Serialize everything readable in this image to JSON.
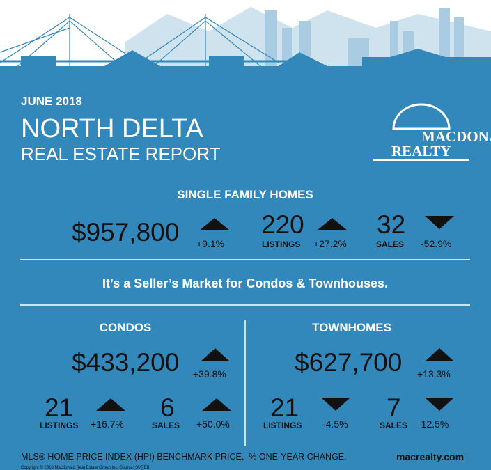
{
  "header": {
    "date": "JUNE 2018",
    "area": "NORTH DELTA",
    "subtitle": "REAL ESTATE REPORT",
    "logo": [
      "MACDONALD",
      "REALTY"
    ]
  },
  "single_family": {
    "title": "SINGLE FAMILY HOMES",
    "price": "$957,800",
    "price_change": "+9.1%",
    "listings": "220",
    "listings_label": "LISTINGS",
    "listings_change": "+27.2%",
    "sales": "32",
    "sales_label": "SALES",
    "sales_change": "-52.9%"
  },
  "market_note": "It’s a Seller’s Market for Condos & Townhouses.",
  "condos": {
    "title": "CONDOS",
    "price": "$433,200",
    "price_change": "+39.8%",
    "listings": "21",
    "listings_label": "LISTINGS",
    "listings_change": "+16.7%",
    "sales": "6",
    "sales_label": "SALES",
    "sales_change": "+50.0%"
  },
  "townhomes": {
    "title": "TOWNHOMES",
    "price": "$627,700",
    "price_change": "+13.3%",
    "listings": "21",
    "listings_label": "LISTINGS",
    "listings_change": "-4.5%",
    "sales": "7",
    "sales_label": "SALES",
    "sales_change": "-12.5%"
  },
  "footer": {
    "note": "MLS® HOME PRICE INDEX (HPI) BENCHMARK PRICE.  % ONE-YEAR CHANGE.",
    "site": "macrealty.com",
    "copyright": "Copyright © 2018 Macdonald Real Estate Group Inc. Source: SVREB"
  }
}
